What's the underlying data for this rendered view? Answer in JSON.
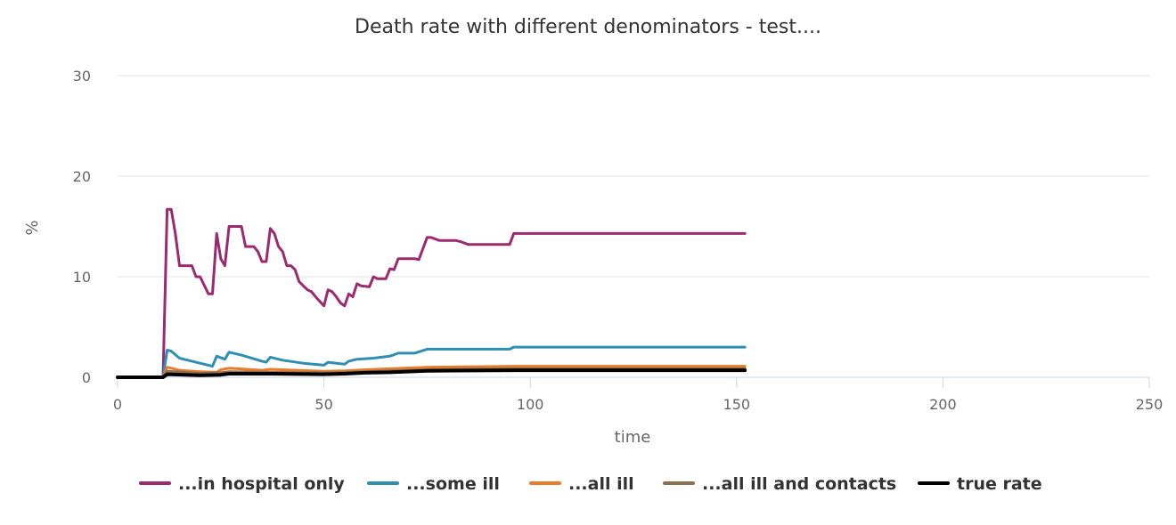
{
  "chart_data": {
    "type": "line",
    "title": "Death rate with different denominators - test....",
    "xlabel": "time",
    "ylabel": "%",
    "xlim": [
      0,
      250
    ],
    "ylim": [
      0,
      30
    ],
    "x_ticks": [
      "0",
      "50",
      "100",
      "150",
      "200",
      "250"
    ],
    "y_ticks": [
      "0",
      "10",
      "20",
      "30"
    ],
    "grid": "horizontal",
    "legend_position": "bottom",
    "series": [
      {
        "name": "...in hospital only",
        "color": "#9b2a6e",
        "points": [
          [
            0,
            0
          ],
          [
            11,
            0
          ],
          [
            12,
            16.7
          ],
          [
            13,
            16.7
          ],
          [
            14,
            14.3
          ],
          [
            15,
            11.1
          ],
          [
            18,
            11.1
          ],
          [
            19,
            10
          ],
          [
            20,
            10
          ],
          [
            22,
            8.3
          ],
          [
            23,
            8.3
          ],
          [
            24,
            14.3
          ],
          [
            25,
            11.8
          ],
          [
            26,
            11.1
          ],
          [
            27,
            15
          ],
          [
            30,
            15
          ],
          [
            31,
            13
          ],
          [
            33,
            13
          ],
          [
            34,
            12.5
          ],
          [
            35,
            11.5
          ],
          [
            36,
            11.5
          ],
          [
            37,
            14.8
          ],
          [
            38,
            14.3
          ],
          [
            39,
            13
          ],
          [
            40,
            12.5
          ],
          [
            41,
            11.1
          ],
          [
            42,
            11.1
          ],
          [
            43,
            10.7
          ],
          [
            44,
            9.5
          ],
          [
            45,
            9.1
          ],
          [
            46,
            8.7
          ],
          [
            47,
            8.5
          ],
          [
            48,
            8
          ],
          [
            50,
            7.1
          ],
          [
            51,
            8.7
          ],
          [
            52,
            8.5
          ],
          [
            53,
            8
          ],
          [
            54,
            7.4
          ],
          [
            55,
            7.1
          ],
          [
            56,
            8.3
          ],
          [
            57,
            8
          ],
          [
            58,
            9.3
          ],
          [
            59,
            9.1
          ],
          [
            61,
            9
          ],
          [
            62,
            10
          ],
          [
            63,
            9.8
          ],
          [
            65,
            9.8
          ],
          [
            66,
            10.8
          ],
          [
            67,
            10.7
          ],
          [
            68,
            11.8
          ],
          [
            72,
            11.8
          ],
          [
            73,
            11.7
          ],
          [
            75,
            13.9
          ],
          [
            76,
            13.9
          ],
          [
            78,
            13.6
          ],
          [
            82,
            13.6
          ],
          [
            83,
            13.5
          ],
          [
            85,
            13.2
          ],
          [
            95,
            13.2
          ],
          [
            96,
            14.3
          ],
          [
            152,
            14.3
          ]
        ]
      },
      {
        "name": "...some ill",
        "color": "#2f8fb3",
        "points": [
          [
            0,
            0
          ],
          [
            11,
            0
          ],
          [
            12,
            2.7
          ],
          [
            13,
            2.6
          ],
          [
            15,
            1.9
          ],
          [
            18,
            1.6
          ],
          [
            20,
            1.4
          ],
          [
            23,
            1.1
          ],
          [
            24,
            2.1
          ],
          [
            26,
            1.8
          ],
          [
            27,
            2.5
          ],
          [
            30,
            2.2
          ],
          [
            35,
            1.6
          ],
          [
            36,
            1.5
          ],
          [
            37,
            2.0
          ],
          [
            40,
            1.7
          ],
          [
            45,
            1.4
          ],
          [
            50,
            1.2
          ],
          [
            51,
            1.5
          ],
          [
            55,
            1.3
          ],
          [
            56,
            1.6
          ],
          [
            58,
            1.8
          ],
          [
            62,
            1.9
          ],
          [
            64,
            2.0
          ],
          [
            66,
            2.1
          ],
          [
            68,
            2.4
          ],
          [
            72,
            2.4
          ],
          [
            75,
            2.8
          ],
          [
            85,
            2.8
          ],
          [
            95,
            2.8
          ],
          [
            96,
            3.0
          ],
          [
            152,
            3.0
          ]
        ]
      },
      {
        "name": "...all ill",
        "color": "#e87c2a",
        "points": [
          [
            0,
            0
          ],
          [
            11,
            0
          ],
          [
            12,
            1.0
          ],
          [
            15,
            0.7
          ],
          [
            20,
            0.55
          ],
          [
            24,
            0.5
          ],
          [
            25,
            0.75
          ],
          [
            27,
            0.9
          ],
          [
            35,
            0.7
          ],
          [
            37,
            0.8
          ],
          [
            50,
            0.6
          ],
          [
            55,
            0.65
          ],
          [
            60,
            0.75
          ],
          [
            66,
            0.85
          ],
          [
            75,
            1.0
          ],
          [
            96,
            1.1
          ],
          [
            152,
            1.1
          ]
        ]
      },
      {
        "name": "...all ill and contacts",
        "color": "#8b6f52",
        "points": [
          [
            0,
            0
          ],
          [
            11,
            0
          ],
          [
            12,
            0.6
          ],
          [
            20,
            0.4
          ],
          [
            25,
            0.45
          ],
          [
            27,
            0.55
          ],
          [
            37,
            0.5
          ],
          [
            50,
            0.45
          ],
          [
            60,
            0.55
          ],
          [
            75,
            0.75
          ],
          [
            96,
            0.85
          ],
          [
            152,
            0.85
          ]
        ]
      },
      {
        "name": "true rate",
        "color": "#000000",
        "points": [
          [
            0,
            0
          ],
          [
            11,
            0
          ],
          [
            12,
            0.3
          ],
          [
            20,
            0.2
          ],
          [
            25,
            0.25
          ],
          [
            27,
            0.35
          ],
          [
            37,
            0.35
          ],
          [
            50,
            0.3
          ],
          [
            55,
            0.35
          ],
          [
            60,
            0.45
          ],
          [
            66,
            0.5
          ],
          [
            75,
            0.65
          ],
          [
            96,
            0.7
          ],
          [
            152,
            0.7
          ]
        ]
      }
    ]
  }
}
